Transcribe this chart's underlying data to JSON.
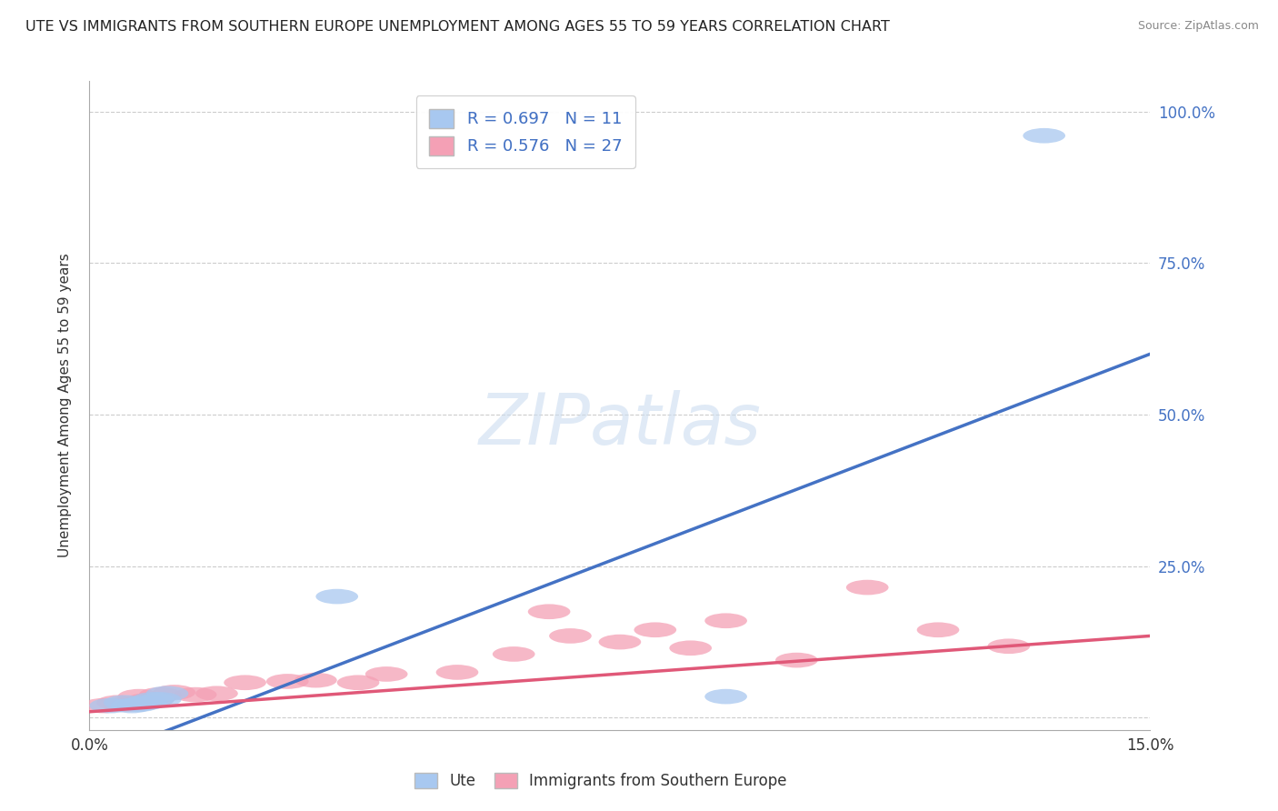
{
  "title": "UTE VS IMMIGRANTS FROM SOUTHERN EUROPE UNEMPLOYMENT AMONG AGES 55 TO 59 YEARS CORRELATION CHART",
  "source": "Source: ZipAtlas.com",
  "ylabel": "Unemployment Among Ages 55 to 59 years",
  "xlim": [
    0.0,
    0.15
  ],
  "ylim": [
    -0.02,
    1.05
  ],
  "xticks": [
    0.0,
    0.15
  ],
  "xtick_labels": [
    "0.0%",
    "15.0%"
  ],
  "ytick_positions": [
    0.0,
    0.25,
    0.5,
    0.75,
    1.0
  ],
  "ytick_labels": [
    "",
    "25.0%",
    "50.0%",
    "75.0%",
    "100.0%"
  ],
  "background_color": "#ffffff",
  "grid_color": "#cccccc",
  "blue_scatter_x": [
    0.003,
    0.005,
    0.006,
    0.007,
    0.008,
    0.009,
    0.01,
    0.011,
    0.035,
    0.09,
    0.135
  ],
  "blue_scatter_y": [
    0.02,
    0.025,
    0.02,
    0.022,
    0.025,
    0.03,
    0.03,
    0.04,
    0.2,
    0.035,
    0.96
  ],
  "blue_line_x": [
    0.0,
    0.15
  ],
  "blue_line_y": [
    -0.07,
    0.6
  ],
  "blue_R": 0.697,
  "blue_N": 11,
  "blue_color": "#a8c8f0",
  "blue_line_color": "#4472c4",
  "pink_scatter_x": [
    0.002,
    0.004,
    0.005,
    0.007,
    0.008,
    0.009,
    0.01,
    0.012,
    0.015,
    0.018,
    0.022,
    0.028,
    0.032,
    0.038,
    0.042,
    0.052,
    0.06,
    0.065,
    0.068,
    0.075,
    0.08,
    0.085,
    0.09,
    0.1,
    0.11,
    0.12,
    0.13
  ],
  "pink_scatter_y": [
    0.02,
    0.025,
    0.022,
    0.035,
    0.028,
    0.03,
    0.038,
    0.042,
    0.038,
    0.04,
    0.058,
    0.06,
    0.062,
    0.058,
    0.072,
    0.075,
    0.105,
    0.175,
    0.135,
    0.125,
    0.145,
    0.115,
    0.16,
    0.095,
    0.215,
    0.145,
    0.118
  ],
  "pink_line_x": [
    0.0,
    0.15
  ],
  "pink_line_y": [
    0.01,
    0.135
  ],
  "pink_R": 0.576,
  "pink_N": 27,
  "pink_color": "#f4a0b5",
  "pink_line_color": "#e05878",
  "legend_labels": [
    "Ute",
    "Immigrants from Southern Europe"
  ]
}
